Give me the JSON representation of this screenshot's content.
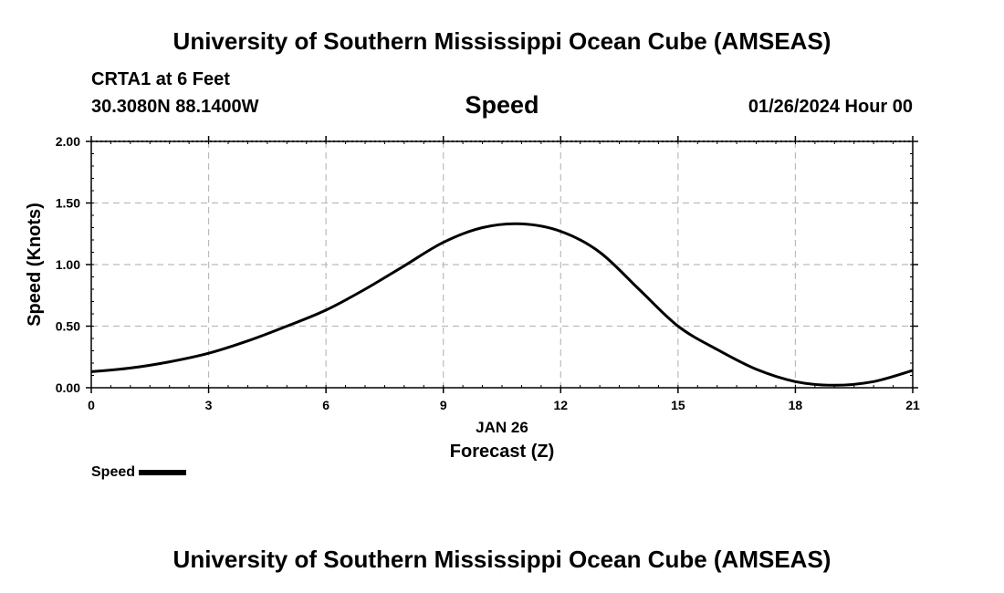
{
  "header": {
    "title": "University of Southern Mississippi Ocean Cube (AMSEAS)",
    "station": "CRTA1 at 6 Feet",
    "coordinates": "30.3080N  88.1400W",
    "datetime": "01/26/2024 Hour 00"
  },
  "footer": {
    "title": "University of Southern Mississippi Ocean Cube (AMSEAS)"
  },
  "colors": {
    "line": "#000000",
    "grid": "#bbbbbb"
  },
  "chart_data": {
    "type": "line",
    "title": "Speed",
    "xlabel": "Forecast (Z)",
    "xlabel_date": "JAN 26",
    "ylabel": "Speed (Knots)",
    "xlim": [
      0,
      21
    ],
    "ylim": [
      0,
      2
    ],
    "x_ticks": [
      0,
      3,
      6,
      9,
      12,
      15,
      18,
      21
    ],
    "x_tick_labels": [
      "0",
      "3",
      "6",
      "9",
      "12",
      "15",
      "18",
      "21"
    ],
    "y_ticks": [
      0,
      0.5,
      1,
      1.5,
      2
    ],
    "y_tick_labels": [
      "0.00",
      "0.50",
      "1.00",
      "1.50",
      "2.00"
    ],
    "grid": true,
    "legend": {
      "position": "bottom-left",
      "label": "Speed"
    },
    "series": [
      {
        "name": "Speed",
        "x": [
          0,
          1,
          2,
          3,
          4,
          5,
          6,
          7,
          8,
          9,
          10,
          11,
          12,
          13,
          14,
          15,
          16,
          17,
          18,
          19,
          20,
          21
        ],
        "values": [
          0.13,
          0.16,
          0.21,
          0.28,
          0.38,
          0.5,
          0.63,
          0.8,
          0.99,
          1.18,
          1.3,
          1.33,
          1.27,
          1.1,
          0.8,
          0.5,
          0.31,
          0.15,
          0.05,
          0.02,
          0.05,
          0.14
        ]
      }
    ]
  }
}
